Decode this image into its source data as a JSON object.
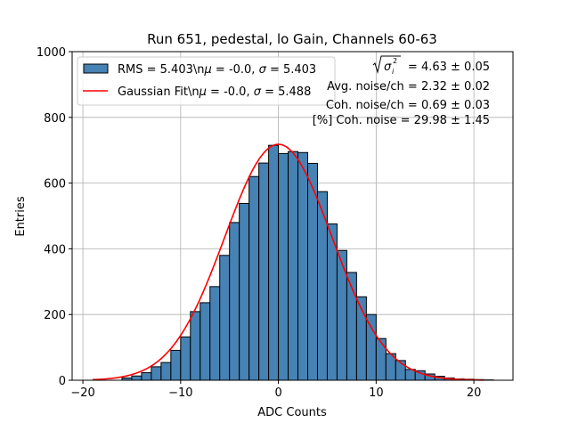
{
  "chart_data": {
    "type": "bar",
    "title": "Run 651, pedestal, lo Gain, Channels 60-63",
    "xlabel": "ADC Counts",
    "ylabel": "Entries",
    "xlim": [
      -21.1,
      24
    ],
    "ylim": [
      0,
      1000
    ],
    "xticks": [
      -20,
      -10,
      0,
      10,
      20
    ],
    "yticks": [
      0,
      200,
      400,
      600,
      800,
      1000
    ],
    "grid": true,
    "legend_position": "top-left",
    "bin_edges_start": -16,
    "bin_width": 1,
    "bar_color": "#4682b4",
    "fit_color": "#ff0000",
    "histogram": {
      "name": "RMS = 5.403\\n$\\mu$ = -0.0, $\\sigma$ = 5.403",
      "values": [
        7,
        13,
        23,
        41,
        54,
        91,
        132,
        209,
        236,
        285,
        380,
        480,
        538,
        620,
        661,
        715,
        690,
        696,
        693,
        660,
        574,
        476,
        395,
        328,
        254,
        200,
        127,
        81,
        60,
        33,
        29,
        19,
        12,
        7,
        4,
        3,
        2,
        1
      ]
    },
    "fit": {
      "name": "Gaussian Fit\\n$\\mu$ = -0.0, $\\sigma$ = 5.488",
      "mu": 0.0,
      "sigma": 5.488,
      "amplitude": 718,
      "x_range": [
        -19,
        21
      ]
    },
    "legend": [
      {
        "prefix": "RMS = 5.403\\n",
        "mu": "μ",
        "mid": " = -0.0, ",
        "sigma": "σ",
        "suffix": " = 5.403"
      },
      {
        "prefix": "Gaussian Fit\\n",
        "mu": "μ",
        "mid": " = -0.0, ",
        "sigma": "σ",
        "suffix": " = 5.488"
      }
    ],
    "annotations": [
      "= 4.63 ± 0.05",
      "Avg. noise/ch = 2.32 ± 0.02",
      "Coh. noise/ch = 0.69 ± 0.03",
      "[%] Coh. noise = 29.98 ± 1.45"
    ],
    "annotation_symbol": "σ"
  }
}
